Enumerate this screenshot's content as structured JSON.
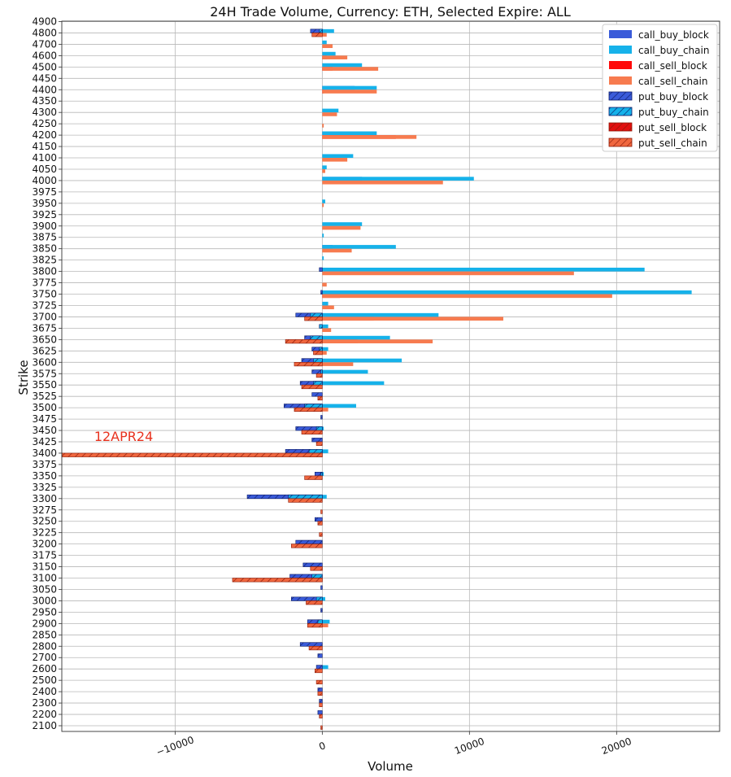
{
  "chart_data": {
    "type": "bar",
    "orientation": "horizontal",
    "title": "24H Trade Volume, Currency: ETH, Selected Expire: ALL",
    "xlabel": "Volume",
    "ylabel": "Strike",
    "xlim": [
      -17700,
      27000
    ],
    "xticks": [
      -10000,
      0,
      10000,
      20000
    ],
    "xtick_labels": [
      "−10000",
      "0",
      "10000",
      "20000"
    ],
    "grid": true,
    "legend_position": "top-right",
    "annotation": {
      "text": "12APR24",
      "strike": "3400",
      "x": -15500,
      "color": "#e8321e"
    },
    "colors": {
      "call_buy_block": "#3a5bd9",
      "call_buy_chain": "#16b2ea",
      "call_sell_block": "#ff0a0a",
      "call_sell_chain": "#f77b4f",
      "put_buy_block": "#3a5bd9",
      "put_buy_chain": "#16b2ea",
      "put_sell_block": "#e10f0f",
      "put_sell_chain": "#f0673f"
    },
    "strikes": [
      "4900",
      "4800",
      "4700",
      "4600",
      "4500",
      "4450",
      "4400",
      "4350",
      "4300",
      "4250",
      "4200",
      "4150",
      "4100",
      "4050",
      "4000",
      "3975",
      "3950",
      "3925",
      "3900",
      "3875",
      "3850",
      "3825",
      "3800",
      "3775",
      "3750",
      "3725",
      "3700",
      "3675",
      "3650",
      "3625",
      "3600",
      "3575",
      "3550",
      "3525",
      "3500",
      "3475",
      "3450",
      "3425",
      "3400",
      "3375",
      "3350",
      "3325",
      "3300",
      "3275",
      "3250",
      "3225",
      "3200",
      "3175",
      "3150",
      "3100",
      "3050",
      "3000",
      "2950",
      "2900",
      "2850",
      "2800",
      "2700",
      "2600",
      "2500",
      "2400",
      "2300",
      "2200",
      "2100"
    ],
    "series": [
      {
        "name": "call_buy_block",
        "legend_label": "call_buy_block",
        "side": "buy",
        "hatched": false,
        "values": [
          0,
          100,
          0,
          0,
          0,
          0,
          2200,
          0,
          0,
          0,
          2000,
          0,
          0,
          0,
          2700,
          0,
          0,
          0,
          0,
          0,
          700,
          0,
          1500,
          0,
          0,
          0,
          0,
          0,
          0,
          0,
          0,
          0,
          0,
          0,
          0,
          0,
          0,
          0,
          0,
          0,
          0,
          0,
          0,
          0,
          0,
          0,
          0,
          0,
          0,
          0,
          0,
          0,
          0,
          0,
          0,
          0,
          0,
          0,
          0,
          0,
          0,
          0,
          0
        ]
      },
      {
        "name": "call_buy_chain",
        "legend_label": "call_buy_chain",
        "side": "buy",
        "hatched": false,
        "values": [
          0,
          800,
          300,
          900,
          2700,
          0,
          3700,
          0,
          1100,
          0,
          3700,
          0,
          2100,
          300,
          10300,
          0,
          200,
          0,
          2700,
          100,
          5000,
          100,
          21900,
          0,
          25100,
          400,
          7900,
          400,
          4600,
          400,
          5400,
          3100,
          4200,
          0,
          2300,
          0,
          100,
          0,
          400,
          0,
          100,
          0,
          300,
          0,
          0,
          0,
          0,
          0,
          0,
          0,
          0,
          200,
          0,
          500,
          0,
          0,
          0,
          400,
          0,
          0,
          0,
          0,
          0
        ]
      },
      {
        "name": "call_sell_block",
        "legend_label": "call_sell_block",
        "side": "sell",
        "hatched": false,
        "values": [
          0,
          0,
          0,
          300,
          700,
          0,
          100,
          0,
          0,
          0,
          5000,
          0,
          0,
          0,
          0,
          0,
          0,
          0,
          0,
          0,
          0,
          0,
          0,
          0,
          1200,
          0,
          3500,
          0,
          2400,
          0,
          0,
          0,
          0,
          0,
          0,
          0,
          0,
          0,
          0,
          0,
          0,
          0,
          0,
          0,
          0,
          0,
          0,
          0,
          0,
          0,
          0,
          0,
          0,
          0,
          0,
          0,
          0,
          0,
          0,
          0,
          0,
          0,
          0
        ]
      },
      {
        "name": "call_sell_chain",
        "legend_label": "call_sell_chain",
        "side": "sell",
        "hatched": false,
        "values": [
          0,
          300,
          700,
          1700,
          3800,
          0,
          3700,
          0,
          1000,
          100,
          6400,
          0,
          1700,
          200,
          8200,
          0,
          100,
          0,
          2600,
          0,
          2000,
          0,
          17100,
          300,
          19700,
          800,
          12300,
          600,
          7500,
          300,
          2100,
          0,
          0,
          0,
          400,
          0,
          0,
          0,
          0,
          0,
          0,
          0,
          0,
          0,
          0,
          0,
          0,
          0,
          0,
          0,
          0,
          0,
          0,
          400,
          0,
          0,
          0,
          0,
          0,
          0,
          0,
          0,
          0
        ]
      },
      {
        "name": "put_buy_block",
        "legend_label": "put_buy_block",
        "side": "buy",
        "hatched": true,
        "values": [
          0,
          -800,
          0,
          0,
          0,
          0,
          0,
          0,
          0,
          0,
          0,
          0,
          0,
          0,
          0,
          0,
          0,
          0,
          0,
          0,
          0,
          0,
          -200,
          0,
          -100,
          0,
          -1800,
          0,
          -1200,
          -700,
          -1400,
          -700,
          -1500,
          -700,
          -2600,
          -100,
          -1800,
          -700,
          -2500,
          0,
          -500,
          0,
          -5100,
          0,
          -500,
          0,
          -1800,
          0,
          -1300,
          -2200,
          -100,
          -2100,
          -100,
          -1000,
          0,
          -1500,
          -300,
          -400,
          0,
          -300,
          -200,
          -300,
          0
        ]
      },
      {
        "name": "put_buy_chain",
        "legend_label": "put_buy_chain",
        "side": "buy",
        "hatched": true,
        "values": [
          0,
          -200,
          0,
          0,
          0,
          0,
          0,
          0,
          0,
          0,
          0,
          0,
          0,
          0,
          0,
          0,
          0,
          0,
          0,
          0,
          0,
          0,
          0,
          0,
          0,
          0,
          -800,
          -200,
          -800,
          -200,
          -600,
          -100,
          -600,
          0,
          -1200,
          0,
          -400,
          0,
          -900,
          0,
          -100,
          0,
          -2300,
          0,
          0,
          0,
          0,
          0,
          0,
          -700,
          0,
          -400,
          0,
          -300,
          0,
          0,
          0,
          0,
          0,
          0,
          0,
          0,
          0
        ]
      },
      {
        "name": "put_sell_block",
        "legend_label": "put_sell_block",
        "side": "sell",
        "hatched": true,
        "values": [
          0,
          0,
          0,
          0,
          0,
          0,
          0,
          0,
          0,
          0,
          0,
          0,
          0,
          0,
          0,
          0,
          0,
          0,
          0,
          0,
          0,
          0,
          0,
          0,
          0,
          0,
          0,
          0,
          0,
          0,
          0,
          0,
          0,
          0,
          0,
          0,
          0,
          0,
          -1200,
          0,
          0,
          0,
          0,
          0,
          0,
          0,
          0,
          0,
          -800,
          -2500,
          0,
          0,
          0,
          0,
          0,
          0,
          0,
          0,
          0,
          0,
          0,
          0,
          0
        ]
      },
      {
        "name": "put_sell_chain",
        "legend_label": "put_sell_chain",
        "side": "sell",
        "hatched": true,
        "values": [
          0,
          -700,
          0,
          0,
          0,
          0,
          0,
          0,
          0,
          0,
          0,
          0,
          0,
          0,
          0,
          0,
          0,
          0,
          0,
          0,
          0,
          0,
          0,
          0,
          0,
          0,
          -1200,
          0,
          -2500,
          -600,
          -1900,
          -400,
          -1400,
          -300,
          -1900,
          0,
          -1400,
          -400,
          -17700,
          0,
          -1200,
          0,
          -2300,
          -100,
          -300,
          -200,
          -2100,
          0,
          -800,
          -6100,
          0,
          -1100,
          0,
          -1000,
          0,
          -900,
          0,
          -500,
          -400,
          -300,
          -200,
          -200,
          -100
        ]
      }
    ]
  }
}
